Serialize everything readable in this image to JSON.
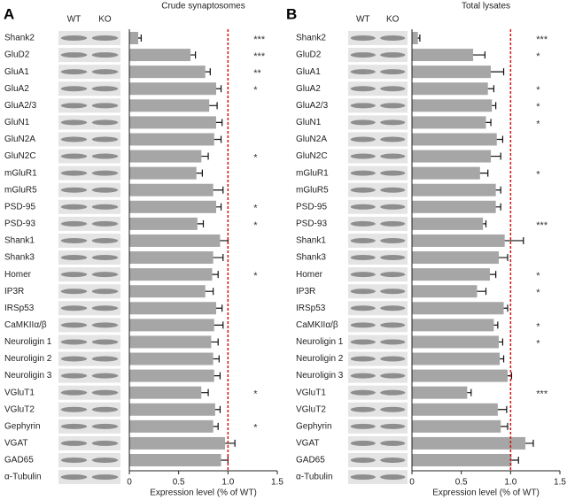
{
  "chart_data": [
    {
      "type": "bar",
      "orientation": "horizontal",
      "panel": "A",
      "title": "Crude synaptosomes",
      "lanes": [
        "WT",
        "KO"
      ],
      "categories": [
        "Shank2",
        "GluD2",
        "GluA1",
        "GluA2",
        "GluA2/3",
        "GluN1",
        "GluN2A",
        "GluN2C",
        "mGluR1",
        "mGluR5",
        "PSD-95",
        "PSD-93",
        "Shank1",
        "Shank3",
        "Homer",
        "IP3R",
        "IRSp53",
        "CaMKIIα/β",
        "Neuroligin 1",
        "Neuroligin 2",
        "Neuroligin 3",
        "VGluT1",
        "VGluT2",
        "Gephyrin",
        "VGAT",
        "GAD65"
      ],
      "values": [
        0.09,
        0.62,
        0.77,
        0.88,
        0.81,
        0.88,
        0.86,
        0.73,
        0.68,
        0.85,
        0.88,
        0.69,
        0.92,
        0.85,
        0.84,
        0.77,
        0.88,
        0.86,
        0.83,
        0.85,
        0.86,
        0.73,
        0.87,
        0.85,
        0.97,
        0.93
      ],
      "errors": [
        0.03,
        0.05,
        0.05,
        0.05,
        0.08,
        0.06,
        0.07,
        0.07,
        0.06,
        0.1,
        0.05,
        0.06,
        0.08,
        0.1,
        0.06,
        0.08,
        0.06,
        0.09,
        0.07,
        0.06,
        0.06,
        0.07,
        0.05,
        0.05,
        0.1,
        0.07
      ],
      "significance": [
        "***",
        "***",
        "**",
        "*",
        null,
        null,
        null,
        "*",
        null,
        null,
        "*",
        "*",
        null,
        null,
        "*",
        null,
        null,
        null,
        null,
        null,
        null,
        "*",
        null,
        "*",
        null,
        null
      ],
      "loading_control": "α-Tubulin",
      "color": "#a6a6a6",
      "reference_line": 1,
      "reference_color": "#d11",
      "xlabel": "Expression level  (% of WT)",
      "xlim": [
        0,
        1.5
      ],
      "xticks": [
        0,
        0.5,
        {
          "value": 1,
          "label": "1.0"
        },
        1.5
      ]
    },
    {
      "type": "bar",
      "orientation": "horizontal",
      "panel": "B",
      "title": "Total lysates",
      "lanes": [
        "WT",
        "KO"
      ],
      "categories": [
        "Shank2",
        "GluD2",
        "GluA1",
        "GluA2",
        "GluA2/3",
        "GluN1",
        "GluN2A",
        "GluN2C",
        "mGluR1",
        "mGluR5",
        "PSD-95",
        "PSD-93",
        "Shank1",
        "Shank3",
        "Homer",
        "IP3R",
        "IRSp53",
        "CaMKIIα/β",
        "Neuroligin 1",
        "Neuroligin 2",
        "Neuroligin 3",
        "VGluT1",
        "VGluT2",
        "Gephyrin",
        "VGAT",
        "GAD65"
      ],
      "values": [
        0.06,
        0.62,
        0.8,
        0.77,
        0.81,
        0.75,
        0.86,
        0.8,
        0.69,
        0.85,
        0.85,
        0.72,
        0.94,
        0.88,
        0.79,
        0.66,
        0.93,
        0.83,
        0.88,
        0.89,
        0.97,
        0.56,
        0.87,
        0.9,
        1.15,
        1.01
      ],
      "errors": [
        0.02,
        0.12,
        0.13,
        0.06,
        0.04,
        0.05,
        0.06,
        0.1,
        0.08,
        0.05,
        0.05,
        0.03,
        0.19,
        0.09,
        0.06,
        0.09,
        0.04,
        0.04,
        0.04,
        0.04,
        0.04,
        0.04,
        0.09,
        0.07,
        0.08,
        0.07
      ],
      "significance": [
        "***",
        "*",
        null,
        "*",
        "*",
        "*",
        null,
        null,
        "*",
        null,
        null,
        "***",
        null,
        null,
        "*",
        "*",
        null,
        "*",
        "*",
        null,
        null,
        "***",
        null,
        null,
        null,
        null
      ],
      "loading_control": "α-Tubulin",
      "color": "#a6a6a6",
      "reference_line": 1,
      "reference_color": "#d11",
      "xlabel": "Expression level  (% of WT)",
      "xlim": [
        0,
        1.5
      ],
      "xticks": [
        0,
        0.5,
        {
          "value": 1,
          "label": "1.0"
        },
        1.5
      ]
    }
  ]
}
